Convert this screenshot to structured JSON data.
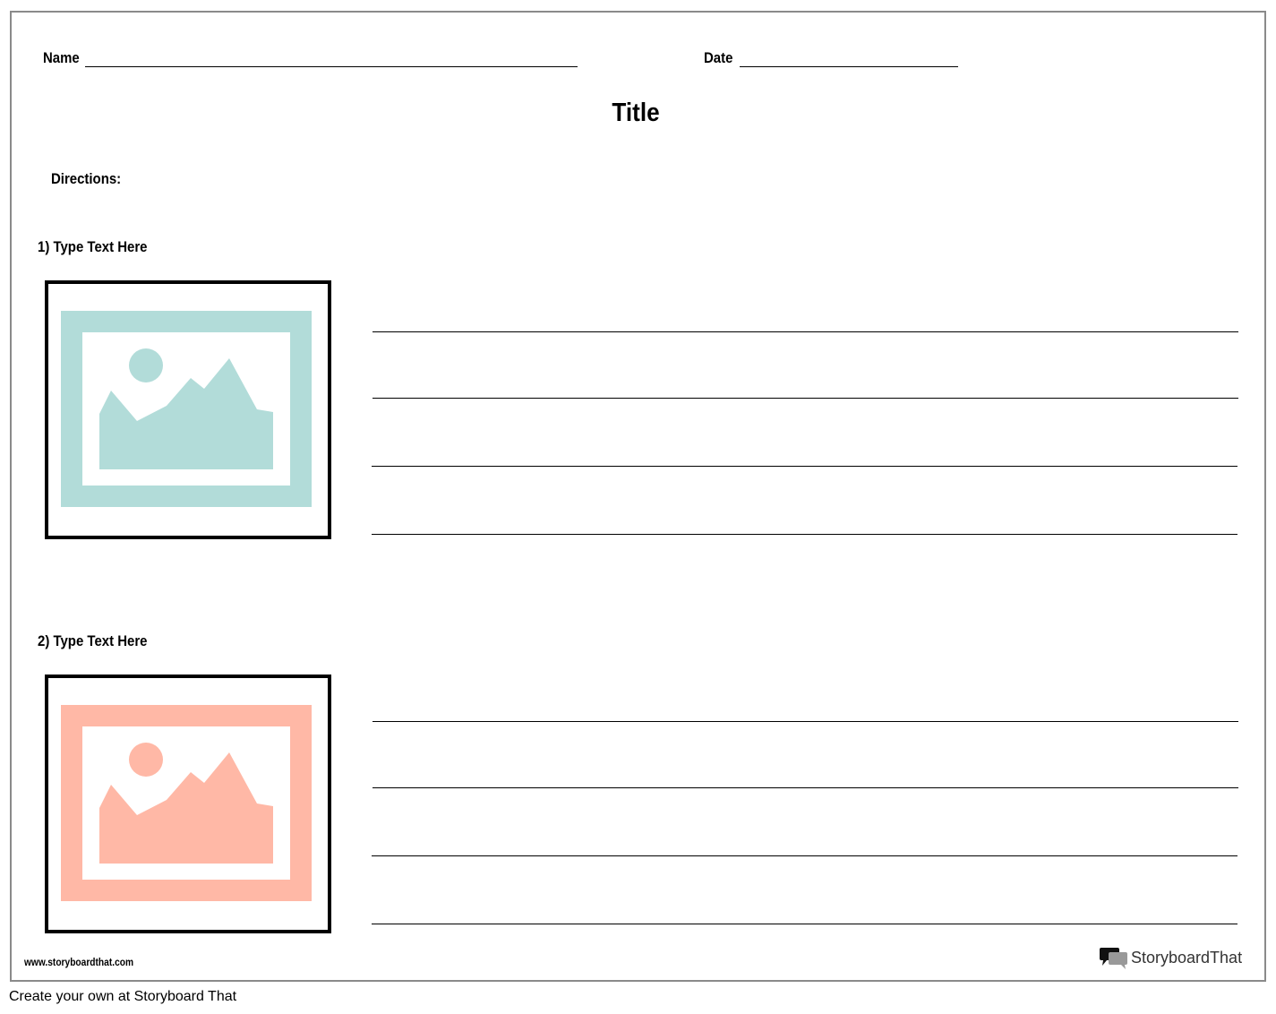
{
  "header": {
    "name_label": "Name",
    "date_label": "Date"
  },
  "title": "Title",
  "directions_label": "Directions:",
  "sections": [
    {
      "label": "1) Type Text Here",
      "image_icon": "image-placeholder-icon",
      "color": "#b2dcd9"
    },
    {
      "label": "2) Type Text Here",
      "image_icon": "image-placeholder-icon",
      "color": "#ffb8a6"
    }
  ],
  "footer": {
    "url": "www.storyboardthat.com",
    "logo_text": "StoryboardThat",
    "create_link": "Create your own at Storyboard That"
  }
}
